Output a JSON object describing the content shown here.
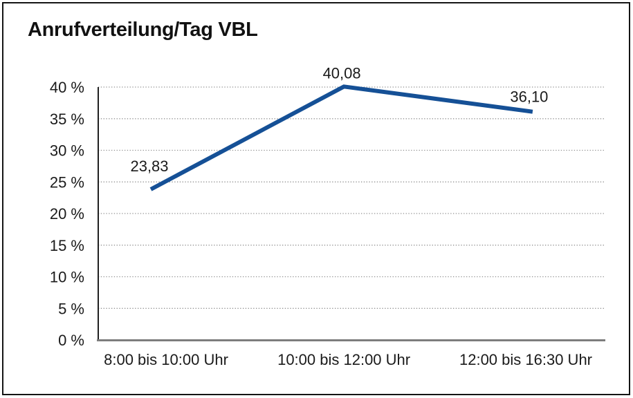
{
  "title": "Anrufverteilung/Tag VBL",
  "chart_data": {
    "type": "line",
    "title": "Anrufverteilung/Tag VBL",
    "categories": [
      "8:00 bis 10:00 Uhr",
      "10:00 bis 12:00 Uhr",
      "12:00 bis 16:30 Uhr"
    ],
    "values": [
      23.83,
      40.08,
      36.1
    ],
    "data_labels": [
      "23,83",
      "40,08",
      "36,10"
    ],
    "xlabel": "",
    "ylabel": "",
    "ylim": [
      0,
      40
    ],
    "ytick_step": 5,
    "ytick_suffix": " %",
    "ytick_labels": [
      "0 %",
      "5 %",
      "10 %",
      "15 %",
      "20 %",
      "25 %",
      "30 %",
      "35 %",
      "40 %"
    ],
    "grid": "horizontal-dotted",
    "legend_position": "none",
    "markers": "none"
  },
  "colors": {
    "series_line": "#155096",
    "gridline": "#8f8f8f",
    "y_axis": "#1f1f1f",
    "x_baseline": "#7d7d7d",
    "text": "#1a1a1a",
    "frame": "#141414",
    "background": "#ffffff"
  }
}
